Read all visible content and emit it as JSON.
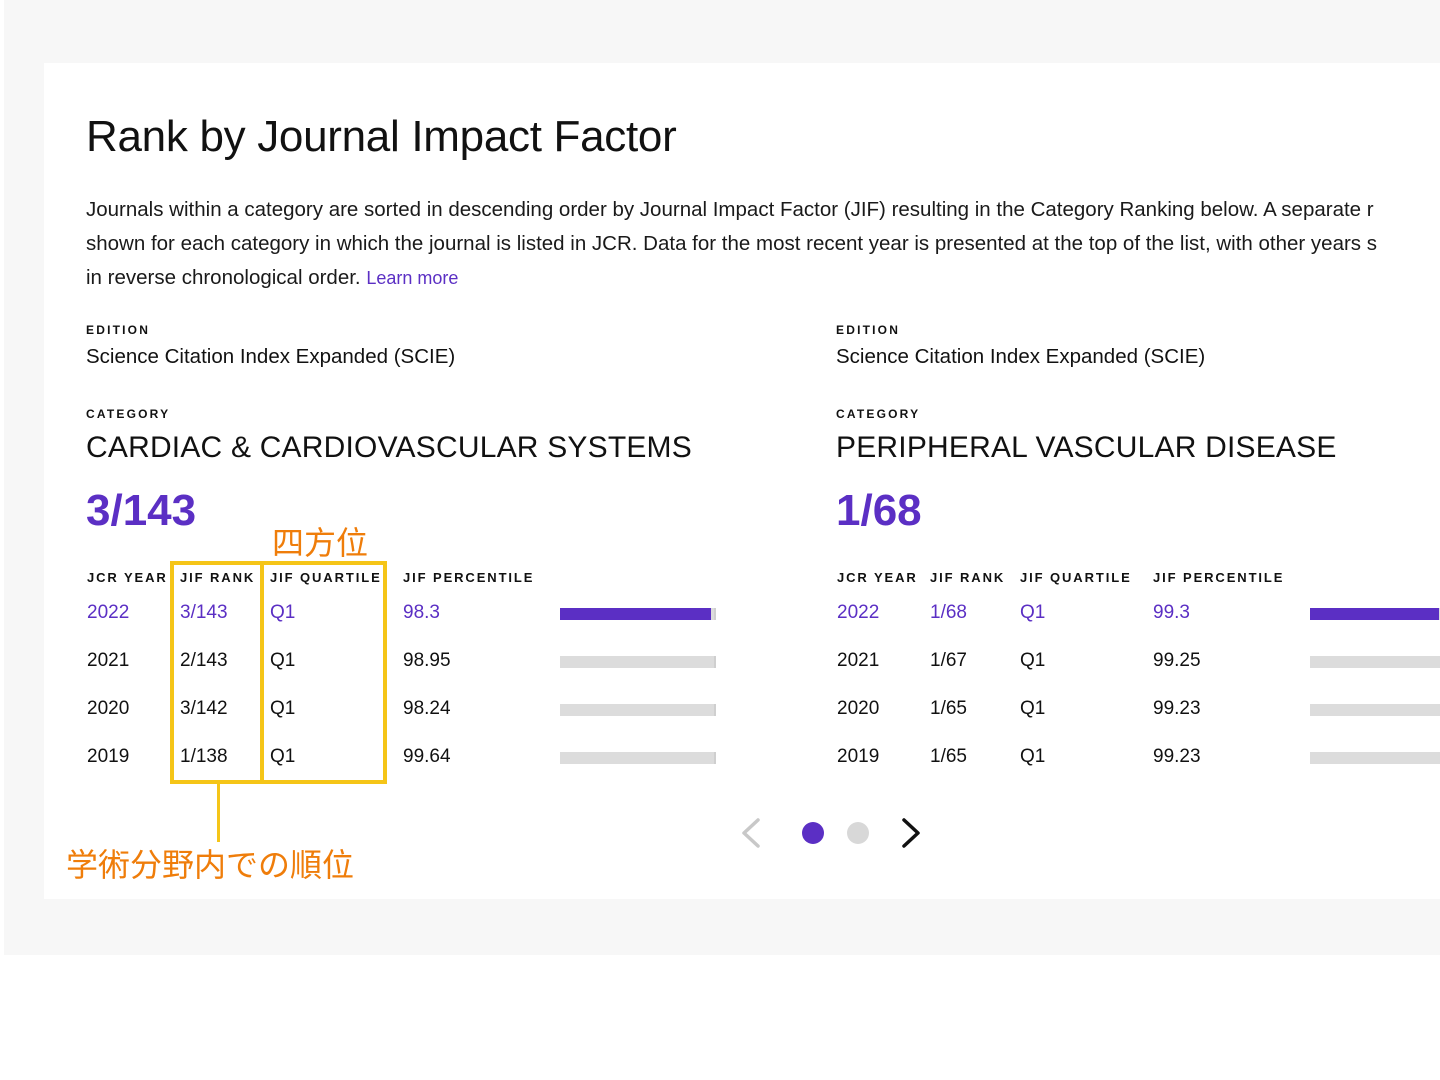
{
  "header": {
    "title": "Rank by Journal Impact Factor",
    "description_lines": [
      "Journals within a category are sorted in descending order by Journal Impact Factor (JIF) resulting in the Category Ranking below. A separate r",
      "shown for each category in which the journal is listed in JCR. Data for the most recent year is presented at the top of the list, with other years s",
      "in reverse chronological order."
    ],
    "learn_more": "Learn more"
  },
  "labels": {
    "edition": "EDITION",
    "category": "CATEGORY",
    "col_year": "JCR YEAR",
    "col_rank": "JIF RANK",
    "col_quartile": "JIF QUARTILE",
    "col_percentile": "JIF PERCENTILE"
  },
  "categories": [
    {
      "edition": "Science Citation Index Expanded (SCIE)",
      "category": "CARDIAC & CARDIOVASCULAR SYSTEMS",
      "rank": "3/143",
      "rows": [
        {
          "year": "2022",
          "rank": "3/143",
          "quartile": "Q1",
          "percentile": "98.3",
          "percentile_value": 98.3
        },
        {
          "year": "2021",
          "rank": "2/143",
          "quartile": "Q1",
          "percentile": "98.95",
          "percentile_value": 98.95
        },
        {
          "year": "2020",
          "rank": "3/142",
          "quartile": "Q1",
          "percentile": "98.24",
          "percentile_value": 98.24
        },
        {
          "year": "2019",
          "rank": "1/138",
          "quartile": "Q1",
          "percentile": "99.64",
          "percentile_value": 99.64
        }
      ]
    },
    {
      "edition": "Science Citation Index Expanded (SCIE)",
      "category": "PERIPHERAL VASCULAR DISEASE",
      "rank": "1/68",
      "rows": [
        {
          "year": "2022",
          "rank": "1/68",
          "quartile": "Q1",
          "percentile": "99.3",
          "percentile_value": 99.3
        },
        {
          "year": "2021",
          "rank": "1/67",
          "quartile": "Q1",
          "percentile": "99.25",
          "percentile_value": 99.25
        },
        {
          "year": "2020",
          "rank": "1/65",
          "quartile": "Q1",
          "percentile": "99.23",
          "percentile_value": 99.23
        },
        {
          "year": "2019",
          "rank": "1/65",
          "quartile": "Q1",
          "percentile": "99.23",
          "percentile_value": 99.23
        }
      ]
    }
  ],
  "annotations": {
    "quartile_label": "四方位",
    "rank_label": "学術分野内での順位"
  },
  "pager": {
    "pages": 2,
    "current": 1,
    "prev_icon": "chevron-left-icon",
    "next_icon": "chevron-right-icon"
  },
  "colors": {
    "accent": "#5b2fc4",
    "annotation_box": "#f5c518",
    "annotation_text": "#ef7d0a",
    "bar_track": "#dcdcdc"
  }
}
